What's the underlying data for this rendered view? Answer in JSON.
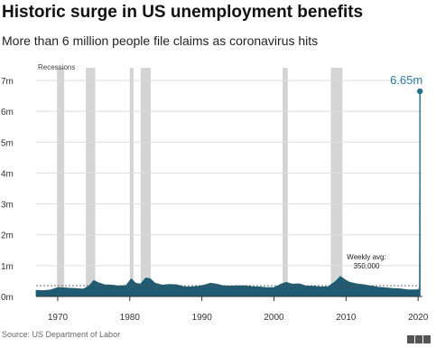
{
  "title": "Historic surge in US unemployment benefits",
  "subtitle": "More than 6 million people file claims as coronavirus hits",
  "source": "Source: US Department of Labor",
  "chart_data": {
    "type": "area",
    "title": "Historic surge in US unemployment benefits",
    "subtitle": "More than 6 million people file claims as coronavirus hits",
    "xlabel": "",
    "ylabel": "",
    "xlim": [
      1967,
      2020.6
    ],
    "ylim": [
      0,
      7000000
    ],
    "x_ticks": [
      1970,
      1980,
      1990,
      2000,
      2010,
      2020
    ],
    "y_ticks": [
      0,
      1000000,
      2000000,
      3000000,
      4000000,
      5000000,
      6000000,
      7000000
    ],
    "y_tick_labels": [
      "0m",
      "1m",
      "2m",
      "3m",
      "4m",
      "5m",
      "6m",
      "7m"
    ],
    "grid": true,
    "recession_label": "Recessions",
    "recessions": [
      [
        1969.9,
        1970.9
      ],
      [
        1973.9,
        1975.2
      ],
      [
        1980.0,
        1980.5
      ],
      [
        1981.5,
        1982.9
      ],
      [
        2001.2,
        2001.9
      ],
      [
        2007.9,
        2009.5
      ]
    ],
    "series": [
      {
        "name": "",
        "x": [
          1967,
          1968,
          1969,
          1970,
          1970.8,
          1971.5,
          1972.5,
          1973.5,
          1974.3,
          1975.0,
          1975.6,
          1976.5,
          1977.5,
          1978.5,
          1979.5,
          1980.2,
          1980.8,
          1981.5,
          1982.2,
          1982.8,
          1983.5,
          1984.5,
          1985.5,
          1986.5,
          1987.5,
          1988.5,
          1989.5,
          1990.5,
          1991.2,
          1992,
          1993,
          1994,
          1995,
          1996,
          1997,
          1998,
          1999,
          2000,
          2001.0,
          2001.7,
          2002.5,
          2003.5,
          2004.5,
          2005.5,
          2006.5,
          2007.5,
          2008.5,
          2009.2,
          2009.8,
          2010.5,
          2011.5,
          2012.5,
          2013.5,
          2014.5,
          2015.5,
          2016.5,
          2017.5,
          2018.5,
          2019.5,
          2020.0,
          2020.17,
          2020.2,
          2020.25
        ],
        "y": [
          200000,
          190000,
          210000,
          290000,
          280000,
          270000,
          260000,
          240000,
          330000,
          520000,
          450000,
          380000,
          370000,
          340000,
          360000,
          570000,
          430000,
          400000,
          600000,
          580000,
          430000,
          370000,
          390000,
          380000,
          320000,
          310000,
          330000,
          380000,
          430000,
          400000,
          350000,
          340000,
          350000,
          350000,
          320000,
          310000,
          290000,
          290000,
          400000,
          460000,
          400000,
          410000,
          340000,
          330000,
          310000,
          320000,
          480000,
          650000,
          550000,
          460000,
          410000,
          380000,
          340000,
          300000,
          280000,
          260000,
          250000,
          220000,
          215000,
          215000,
          282000,
          3300000,
          6648000
        ]
      }
    ],
    "annotations": [
      {
        "label": "6.65m",
        "x": 2020.25,
        "y": 6648000
      },
      {
        "label": "Weekly avg:",
        "value_label": "350,000",
        "y": 350000
      }
    ]
  },
  "colors": {
    "area": "#1f5c73",
    "peak_line": "#2a6f8a",
    "annotation_text": "#2f7ca0",
    "recession": "#d4d4d4",
    "grid": "#dddddd",
    "average_line": "#555555"
  }
}
